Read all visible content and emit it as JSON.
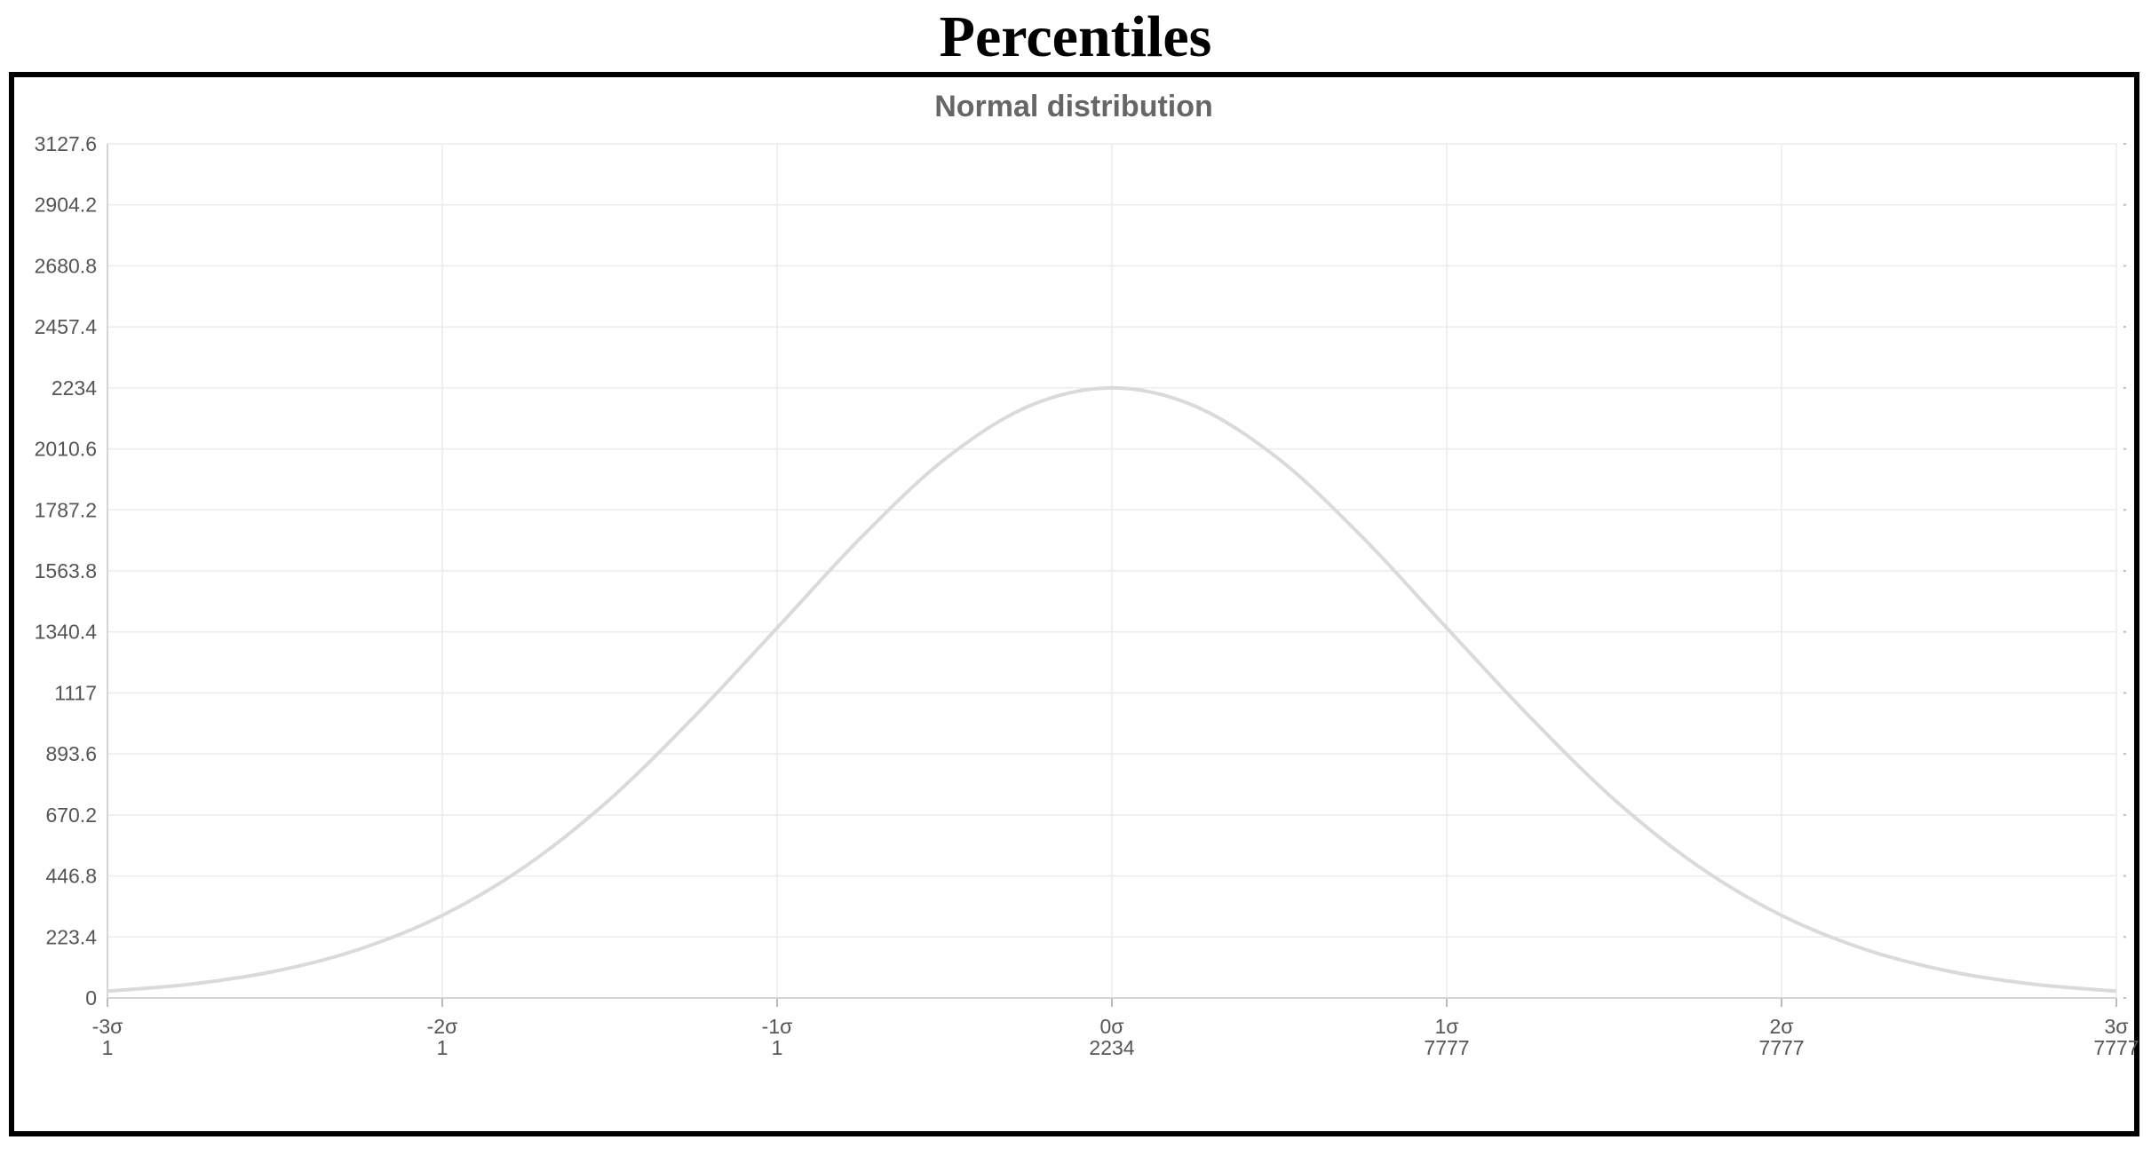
{
  "page": {
    "title": "Percentiles"
  },
  "chart_data": {
    "type": "line",
    "title": "Normal distribution",
    "xlabel": "",
    "ylabel": "",
    "grid": true,
    "legend": "none",
    "xlim": [
      -3,
      3
    ],
    "ylim": [
      0,
      3127.6
    ],
    "y_ticks": [
      0,
      223.4,
      446.8,
      670.2,
      893.6,
      1117,
      1340.4,
      1563.8,
      1787.2,
      2010.6,
      2234,
      2457.4,
      2680.8,
      2904.2,
      3127.6
    ],
    "x_ticks": [
      {
        "value": -3,
        "label": "-3σ",
        "sublabel": "1"
      },
      {
        "value": -2,
        "label": "-2σ",
        "sublabel": "1"
      },
      {
        "value": -1,
        "label": "-1σ",
        "sublabel": "1"
      },
      {
        "value": 0,
        "label": "0σ",
        "sublabel": "2234"
      },
      {
        "value": 1,
        "label": "1σ",
        "sublabel": "7777"
      },
      {
        "value": 2,
        "label": "2σ",
        "sublabel": "7777"
      },
      {
        "value": 3,
        "label": "3σ",
        "sublabel": "7777"
      }
    ],
    "series": [
      {
        "color": "#dadada",
        "x": [
          -3,
          -2.75,
          -2.5,
          -2.25,
          -2,
          -1.75,
          -1.5,
          -1.25,
          -1,
          -0.75,
          -0.5,
          -0.25,
          0,
          0.25,
          0.5,
          0.75,
          1,
          1.25,
          1.5,
          1.75,
          2,
          2.25,
          2.5,
          2.75,
          3
        ],
        "y": [
          24.8,
          50.8,
          98.0,
          177.6,
          302.3,
          483.6,
          727.1,
          1027.0,
          1355.0,
          1685.0,
          1972.0,
          2166.0,
          2234.0,
          2166.0,
          1972.0,
          1685.0,
          1355.0,
          1027.0,
          727.1,
          483.6,
          302.3,
          177.6,
          98.0,
          50.8,
          24.8
        ]
      }
    ]
  }
}
